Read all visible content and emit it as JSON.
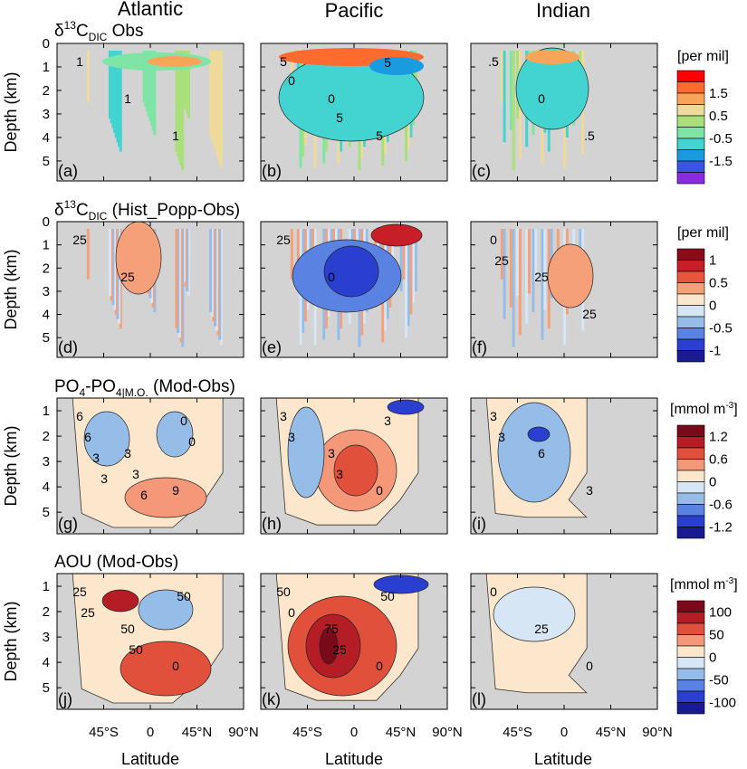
{
  "figure": {
    "column_titles": [
      "Atlantic",
      "Pacific",
      "Indian"
    ],
    "xlabel": "Latitude",
    "ylabel": "Depth (km)",
    "colors": {
      "land_mask": "#d3d3d3",
      "axis": "#000000"
    }
  },
  "chart_data": [
    {
      "type": "heatmap",
      "row_title_main": "δ",
      "row_title_sup": "13",
      "row_title_rest": "C",
      "row_title_sub": "DIC",
      "row_title_tail": " Obs",
      "colorbar_unit": "[per mil]",
      "colorbar_ticks": [
        "1.5",
        "0.5",
        "-0.5",
        "-1.5"
      ],
      "colorbar_colors": [
        "#ff0000",
        "#ff6a2f",
        "#f8a55a",
        "#eedb9c",
        "#a9e07b",
        "#7fe5a6",
        "#43d4d1",
        "#1a9be0",
        "#3a55e0",
        "#8a2be2"
      ],
      "panel_labels": [
        "(a)",
        "(b)",
        "(c)"
      ],
      "yticks": [
        "0",
        "1",
        "2",
        "3",
        "4",
        "5"
      ],
      "xticks": [
        "45°S",
        "0",
        "45°N",
        "90°N"
      ],
      "contour_labels": [
        [
          "1",
          "1",
          "1"
        ],
        [
          "5",
          "0",
          "5",
          "0",
          "5",
          "5"
        ],
        [
          ".5",
          "0",
          ".5"
        ]
      ]
    },
    {
      "type": "heatmap",
      "row_title_main": "δ",
      "row_title_sup": "13",
      "row_title_rest": "C",
      "row_title_sub": "DIC",
      "row_title_tail": " (Hist_Popp-Obs)",
      "colorbar_unit": "[per mil]",
      "colorbar_ticks": [
        "1",
        "0.5",
        "0",
        "-0.5",
        "-1"
      ],
      "colorbar_colors": [
        "#8b0a1a",
        "#c81e28",
        "#e8553c",
        "#f6a07a",
        "#fde7cc",
        "#d6e6f5",
        "#96bde8",
        "#5a82e2",
        "#2a3fd0",
        "#1a1a90"
      ],
      "panel_labels": [
        "(d)",
        "(e)",
        "(f)"
      ],
      "yticks": [
        "0",
        "1",
        "2",
        "3",
        "4",
        "5"
      ],
      "xticks": [
        "45°S",
        "0",
        "45°N",
        "90°N"
      ],
      "contour_labels": [
        [
          "25",
          "25"
        ],
        [
          "25",
          "0"
        ],
        [
          "0",
          "25",
          "25",
          "25"
        ]
      ]
    },
    {
      "type": "heatmap",
      "row_title_main": "PO",
      "row_title_sub1": "4",
      "row_title_mid": "-PO",
      "row_title_sub2": "4",
      "row_title_sub3": "|M.O.",
      "row_title_tail": " (Mod-Obs)",
      "colorbar_unit_main": "[mmol m",
      "colorbar_unit_sup": "-3",
      "colorbar_unit_end": "]",
      "colorbar_ticks": [
        "1.2",
        "0.6",
        "0",
        "-0.6",
        "-1.2"
      ],
      "colorbar_colors": [
        "#7a0a1a",
        "#b51d26",
        "#e0503a",
        "#f5987a",
        "#fde7cc",
        "#d6e6f5",
        "#96bde8",
        "#5a82e2",
        "#2a3fd0",
        "#1a1a90"
      ],
      "panel_labels": [
        "(g)",
        "(h)",
        "(i)"
      ],
      "yticks": [
        "1",
        "2",
        "3",
        "4",
        "5"
      ],
      "xticks": [
        "45°S",
        "0",
        "45°N",
        "90°N"
      ],
      "contour_labels": [
        [
          "6",
          "3",
          "9",
          "6",
          "3",
          "0",
          "3",
          "6",
          "0",
          "3"
        ],
        [
          "3",
          "3",
          "0",
          "3",
          "3",
          "3"
        ],
        [
          "3",
          "6",
          "3",
          "3"
        ]
      ]
    },
    {
      "type": "heatmap",
      "row_title_text": "AOU (Mod-Obs)",
      "colorbar_unit_main": "[mmol m",
      "colorbar_unit_sup": "-3",
      "colorbar_unit_end": "]",
      "colorbar_ticks": [
        "100",
        "50",
        "0",
        "-50",
        "-100"
      ],
      "colorbar_colors": [
        "#7a0a1a",
        "#b51d26",
        "#e0503a",
        "#f5987a",
        "#fde7cc",
        "#d6e6f5",
        "#96bde8",
        "#5a82e2",
        "#2a3fd0",
        "#1a1a90"
      ],
      "panel_labels": [
        "(j)",
        "(k)",
        "(l)"
      ],
      "yticks": [
        "1",
        "2",
        "3",
        "4",
        "5"
      ],
      "xticks": [
        "45°S",
        "0",
        "45°N",
        "90°N"
      ],
      "contour_labels": [
        [
          "25",
          "50",
          "0",
          "25",
          "50",
          "50"
        ],
        [
          "50",
          "75",
          "0",
          "0",
          "25",
          "50"
        ],
        [
          "0",
          "25",
          "0"
        ]
      ]
    }
  ]
}
